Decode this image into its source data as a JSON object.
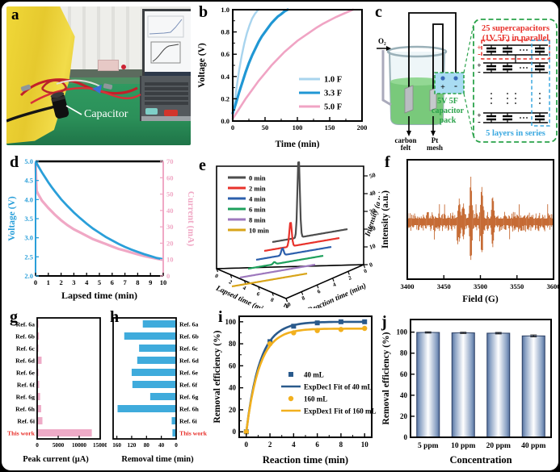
{
  "figure": {
    "panels": {
      "a": "a",
      "b": "b",
      "c": "c",
      "d": "d",
      "e": "e",
      "f": "f",
      "g": "g",
      "h": "h",
      "i": "i",
      "j": "j"
    }
  },
  "photo": {
    "annotation": "Capacitor"
  },
  "diagram": {
    "o2": "O₂",
    "electrode_left_1": "carbon",
    "electrode_left_2": "felt",
    "electrode_right_1": "Pt",
    "electrode_right_2": "mesh",
    "pack_plus": "+",
    "pack_minus": "-",
    "pack_line1": "5V 5F",
    "pack_line2": "capacitor",
    "pack_line3": "pack",
    "parallel_line1": "25 supercapacitors",
    "parallel_line2": "(1V 5F) in parallel",
    "series_label": "5 layers in series",
    "colors": {
      "green": "#2aa24a",
      "red": "#e8302a",
      "blue": "#3aa8e0",
      "pack_fill": "#a9dcf2"
    }
  },
  "chart_data": [
    {
      "panel": "b",
      "type": "line",
      "renderer": "xy",
      "xlabel": "Time (min)",
      "ylabel": "Voltage (V)",
      "xlim": [
        0,
        200
      ],
      "xticks": [
        0,
        50,
        100,
        150,
        200
      ],
      "xminor": 25,
      "ylim": [
        0,
        1
      ],
      "yticks": [
        0,
        0.2,
        0.4,
        0.6,
        0.8,
        1
      ],
      "ydecimals": 1,
      "yminor": 0.1,
      "series": [
        {
          "name": "1.0 F",
          "color": "#a8d4ee",
          "width": 2.4,
          "points": [
            [
              0,
              0.04
            ],
            [
              3,
              0.17
            ],
            [
              6,
              0.3
            ],
            [
              10,
              0.46
            ],
            [
              14,
              0.59
            ],
            [
              18,
              0.7
            ],
            [
              22,
              0.79
            ],
            [
              26,
              0.86
            ],
            [
              30,
              0.92
            ],
            [
              34,
              0.96
            ],
            [
              38,
              0.99
            ],
            [
              40,
              1.0
            ]
          ]
        },
        {
          "name": "3.3 F",
          "color": "#2097d4",
          "width": 3.2,
          "points": [
            [
              0,
              0.07
            ],
            [
              5,
              0.16
            ],
            [
              10,
              0.26
            ],
            [
              15,
              0.35
            ],
            [
              20,
              0.44
            ],
            [
              25,
              0.52
            ],
            [
              30,
              0.59
            ],
            [
              35,
              0.65
            ],
            [
              40,
              0.71
            ],
            [
              45,
              0.76
            ],
            [
              50,
              0.8
            ],
            [
              55,
              0.84
            ],
            [
              60,
              0.88
            ],
            [
              65,
              0.91
            ],
            [
              70,
              0.94
            ],
            [
              75,
              0.96
            ],
            [
              80,
              0.985
            ],
            [
              85,
              1.0
            ]
          ]
        },
        {
          "name": "5.0 F",
          "color": "#f0a4c4",
          "width": 2.6,
          "points": [
            [
              0,
              0.02
            ],
            [
              10,
              0.11
            ],
            [
              20,
              0.2
            ],
            [
              30,
              0.28
            ],
            [
              40,
              0.36
            ],
            [
              50,
              0.43
            ],
            [
              60,
              0.5
            ],
            [
              70,
              0.56
            ],
            [
              80,
              0.62
            ],
            [
              90,
              0.67
            ],
            [
              100,
              0.72
            ],
            [
              110,
              0.76
            ],
            [
              120,
              0.8
            ],
            [
              130,
              0.84
            ],
            [
              140,
              0.875
            ],
            [
              150,
              0.905
            ],
            [
              160,
              0.935
            ],
            [
              170,
              0.96
            ],
            [
              180,
              0.985
            ],
            [
              186,
              1.0
            ]
          ]
        }
      ]
    },
    {
      "panel": "d",
      "type": "line-dual-axis",
      "renderer": "dual",
      "xlabel": "Lapsed time (min)",
      "ylabel_left": "Voltage (V)",
      "ylabel_right": "Current (mA)",
      "xlim": [
        0,
        10
      ],
      "xticks": [
        0,
        1,
        2,
        3,
        4,
        5,
        6,
        7,
        8,
        9,
        10
      ],
      "ylim_left": [
        2,
        5
      ],
      "yticks_left": [
        2,
        2.5,
        3,
        3.5,
        4,
        4.5,
        5
      ],
      "ylim_right": [
        0,
        70
      ],
      "yticks_right": [
        0,
        10,
        20,
        30,
        40,
        50,
        60,
        70
      ],
      "color_left": "#2a9fd9",
      "color_right": "#f0a8c5",
      "voltage": [
        [
          0,
          5.0
        ],
        [
          0.25,
          4.85
        ],
        [
          0.5,
          4.71
        ],
        [
          0.75,
          4.58
        ],
        [
          1,
          4.45
        ],
        [
          1.25,
          4.33
        ],
        [
          1.5,
          4.22
        ],
        [
          2,
          4.01
        ],
        [
          2.5,
          3.83
        ],
        [
          3,
          3.66
        ],
        [
          3.5,
          3.51
        ],
        [
          4,
          3.37
        ],
        [
          4.5,
          3.24
        ],
        [
          5,
          3.13
        ],
        [
          5.5,
          3.02
        ],
        [
          6,
          2.93
        ],
        [
          6.5,
          2.84
        ],
        [
          7,
          2.76
        ],
        [
          7.5,
          2.69
        ],
        [
          8,
          2.63
        ],
        [
          8.5,
          2.57
        ],
        [
          9,
          2.52
        ],
        [
          9.5,
          2.47
        ],
        [
          10,
          2.44
        ]
      ],
      "current": [
        [
          0,
          69
        ],
        [
          0.08,
          52
        ],
        [
          0.2,
          50
        ],
        [
          0.5,
          46
        ],
        [
          1,
          41.5
        ],
        [
          1.5,
          37.5
        ],
        [
          2,
          34
        ],
        [
          2.5,
          31
        ],
        [
          3,
          28.5
        ],
        [
          3.5,
          26.5
        ],
        [
          4,
          24.5
        ],
        [
          4.5,
          22.5
        ],
        [
          5,
          21
        ],
        [
          5.5,
          19.5
        ],
        [
          6,
          18
        ],
        [
          6.5,
          16.5
        ],
        [
          7,
          15.5
        ],
        [
          7.5,
          14.3
        ],
        [
          8,
          13.2
        ],
        [
          8.5,
          12.2
        ],
        [
          9,
          11.3
        ],
        [
          9.5,
          10.5
        ],
        [
          10,
          9.8
        ]
      ]
    },
    {
      "panel": "e",
      "type": "waterfall-3d",
      "renderer": "waterfall",
      "legend": [
        "0 min",
        "2 min",
        "4 min",
        "6 min",
        "8 min",
        "10 min"
      ],
      "colors": [
        "#4d4d4d",
        "#e8322b",
        "#2c5fac",
        "#1ea05c",
        "#9d78bd",
        "#d8a419"
      ],
      "xlabel": "Lapsed time (min)",
      "ylabel": "Reaction time (min)",
      "zlabel": "Intensity (a.u.)",
      "zticks": [
        0,
        10,
        20,
        30,
        40,
        50
      ],
      "axis_ticks": [
        0,
        2,
        4,
        6,
        8,
        10
      ],
      "peak_heights": [
        45,
        14,
        4,
        1.2,
        0,
        0
      ],
      "peak_pos": 0.35
    },
    {
      "panel": "f",
      "type": "epr-spectrum",
      "renderer": "epr",
      "xlabel": "Field (G)",
      "ylabel": "Intensity (a.u.)",
      "xlim": [
        3400,
        3600
      ],
      "xticks": [
        3400,
        3450,
        3500,
        3550,
        3600
      ],
      "color": "#bf5a1d",
      "noise_amp": 6.5,
      "peaks": [
        {
          "pos": 3471,
          "amp": 22
        },
        {
          "pos": 3477,
          "amp": 16
        },
        {
          "pos": 3487,
          "amp": 46
        },
        {
          "pos": 3502,
          "amp": 36
        },
        {
          "pos": 3517,
          "amp": 26
        }
      ]
    },
    {
      "panel": "g",
      "type": "hbar",
      "renderer": "hbar",
      "xlabel": "Peak current (μA)",
      "categories": [
        "Ref. 6a",
        "Ref. 6b",
        "Ref. 6c",
        "Ref. 6d",
        "Ref. 6e",
        "Ref. 6f",
        "Ref. 6g",
        "Ref. 6h",
        "Ref. 6i",
        "This work"
      ],
      "values": [
        120,
        420,
        90,
        1050,
        80,
        480,
        700,
        950,
        1250,
        13000
      ],
      "xlim": [
        0,
        15000
      ],
      "xticks": [
        0,
        5000,
        10000,
        15000
      ],
      "bar_color": "#eeabc7",
      "highlight_color": "#e8302a",
      "labels_side": "left",
      "reverse": false
    },
    {
      "panel": "h",
      "type": "hbar",
      "renderer": "hbar",
      "xlabel": "Removal time (min)",
      "categories": [
        "Ref. 6a",
        "Ref. 6b",
        "Ref. 6c",
        "Ref. 6d",
        "Ref. 6e",
        "Ref. 6f",
        "Ref. 6g",
        "Ref. 6h",
        "Ref. 6i",
        "This work"
      ],
      "values": [
        90,
        140,
        100,
        105,
        120,
        118,
        70,
        158,
        12,
        10
      ],
      "xlim": [
        0,
        170
      ],
      "xticks": [
        160,
        120,
        80,
        40,
        0
      ],
      "bar_color": "#3fabdc",
      "highlight_color": "#e8302a",
      "labels_side": "right",
      "reverse": true
    },
    {
      "panel": "i",
      "type": "scatter-with-fit",
      "renderer": "scatterfit",
      "xlabel": "Reaction time (min)",
      "ylabel": "Removal efficiency (%)",
      "xlim": [
        -0.6,
        10.6
      ],
      "xticks": [
        0,
        2,
        4,
        6,
        8,
        10
      ],
      "xminor": 1,
      "ylim": [
        -5,
        105
      ],
      "yticks": [
        0,
        20,
        40,
        60,
        80,
        100
      ],
      "yminor": 10,
      "series": [
        {
          "label": "40 mL",
          "marker": "square",
          "color": "#2a5a8c",
          "points": [
            [
              0,
              0
            ],
            [
              2,
              82
            ],
            [
              4,
              96
            ],
            [
              6,
              99
            ],
            [
              8,
              100
            ],
            [
              10,
              100
            ]
          ],
          "fit": {
            "label": "ExpDec1 Fit of 40 mL",
            "A": 100,
            "tau": 1.15
          }
        },
        {
          "label": "160 mL",
          "marker": "circle",
          "color": "#f2b01e",
          "points": [
            [
              0,
              0
            ],
            [
              2,
              80
            ],
            [
              4,
              90
            ],
            [
              6,
              92
            ],
            [
              8,
              93
            ],
            [
              10,
              94
            ]
          ],
          "fit": {
            "label": "ExpDex1 Fit of 160 mL",
            "A": 93.8,
            "tau": 1.12
          }
        }
      ]
    },
    {
      "panel": "j",
      "type": "bar",
      "renderer": "vbar",
      "xlabel": "Concentration",
      "ylabel": "Removal efficiency (%)",
      "categories": [
        "5 ppm",
        "10 ppm",
        "20 ppm",
        "40 ppm"
      ],
      "values": [
        99.7,
        99.3,
        99.0,
        96.4
      ],
      "errors": [
        0.6,
        0.6,
        0.7,
        0.9
      ],
      "ylim": [
        0,
        112
      ],
      "yticks": [
        0,
        20,
        40,
        60,
        80,
        100
      ],
      "bar_edge": "#54719f",
      "bar_mid": "#ffffff",
      "bar_stroke": "#2b3f63"
    }
  ]
}
